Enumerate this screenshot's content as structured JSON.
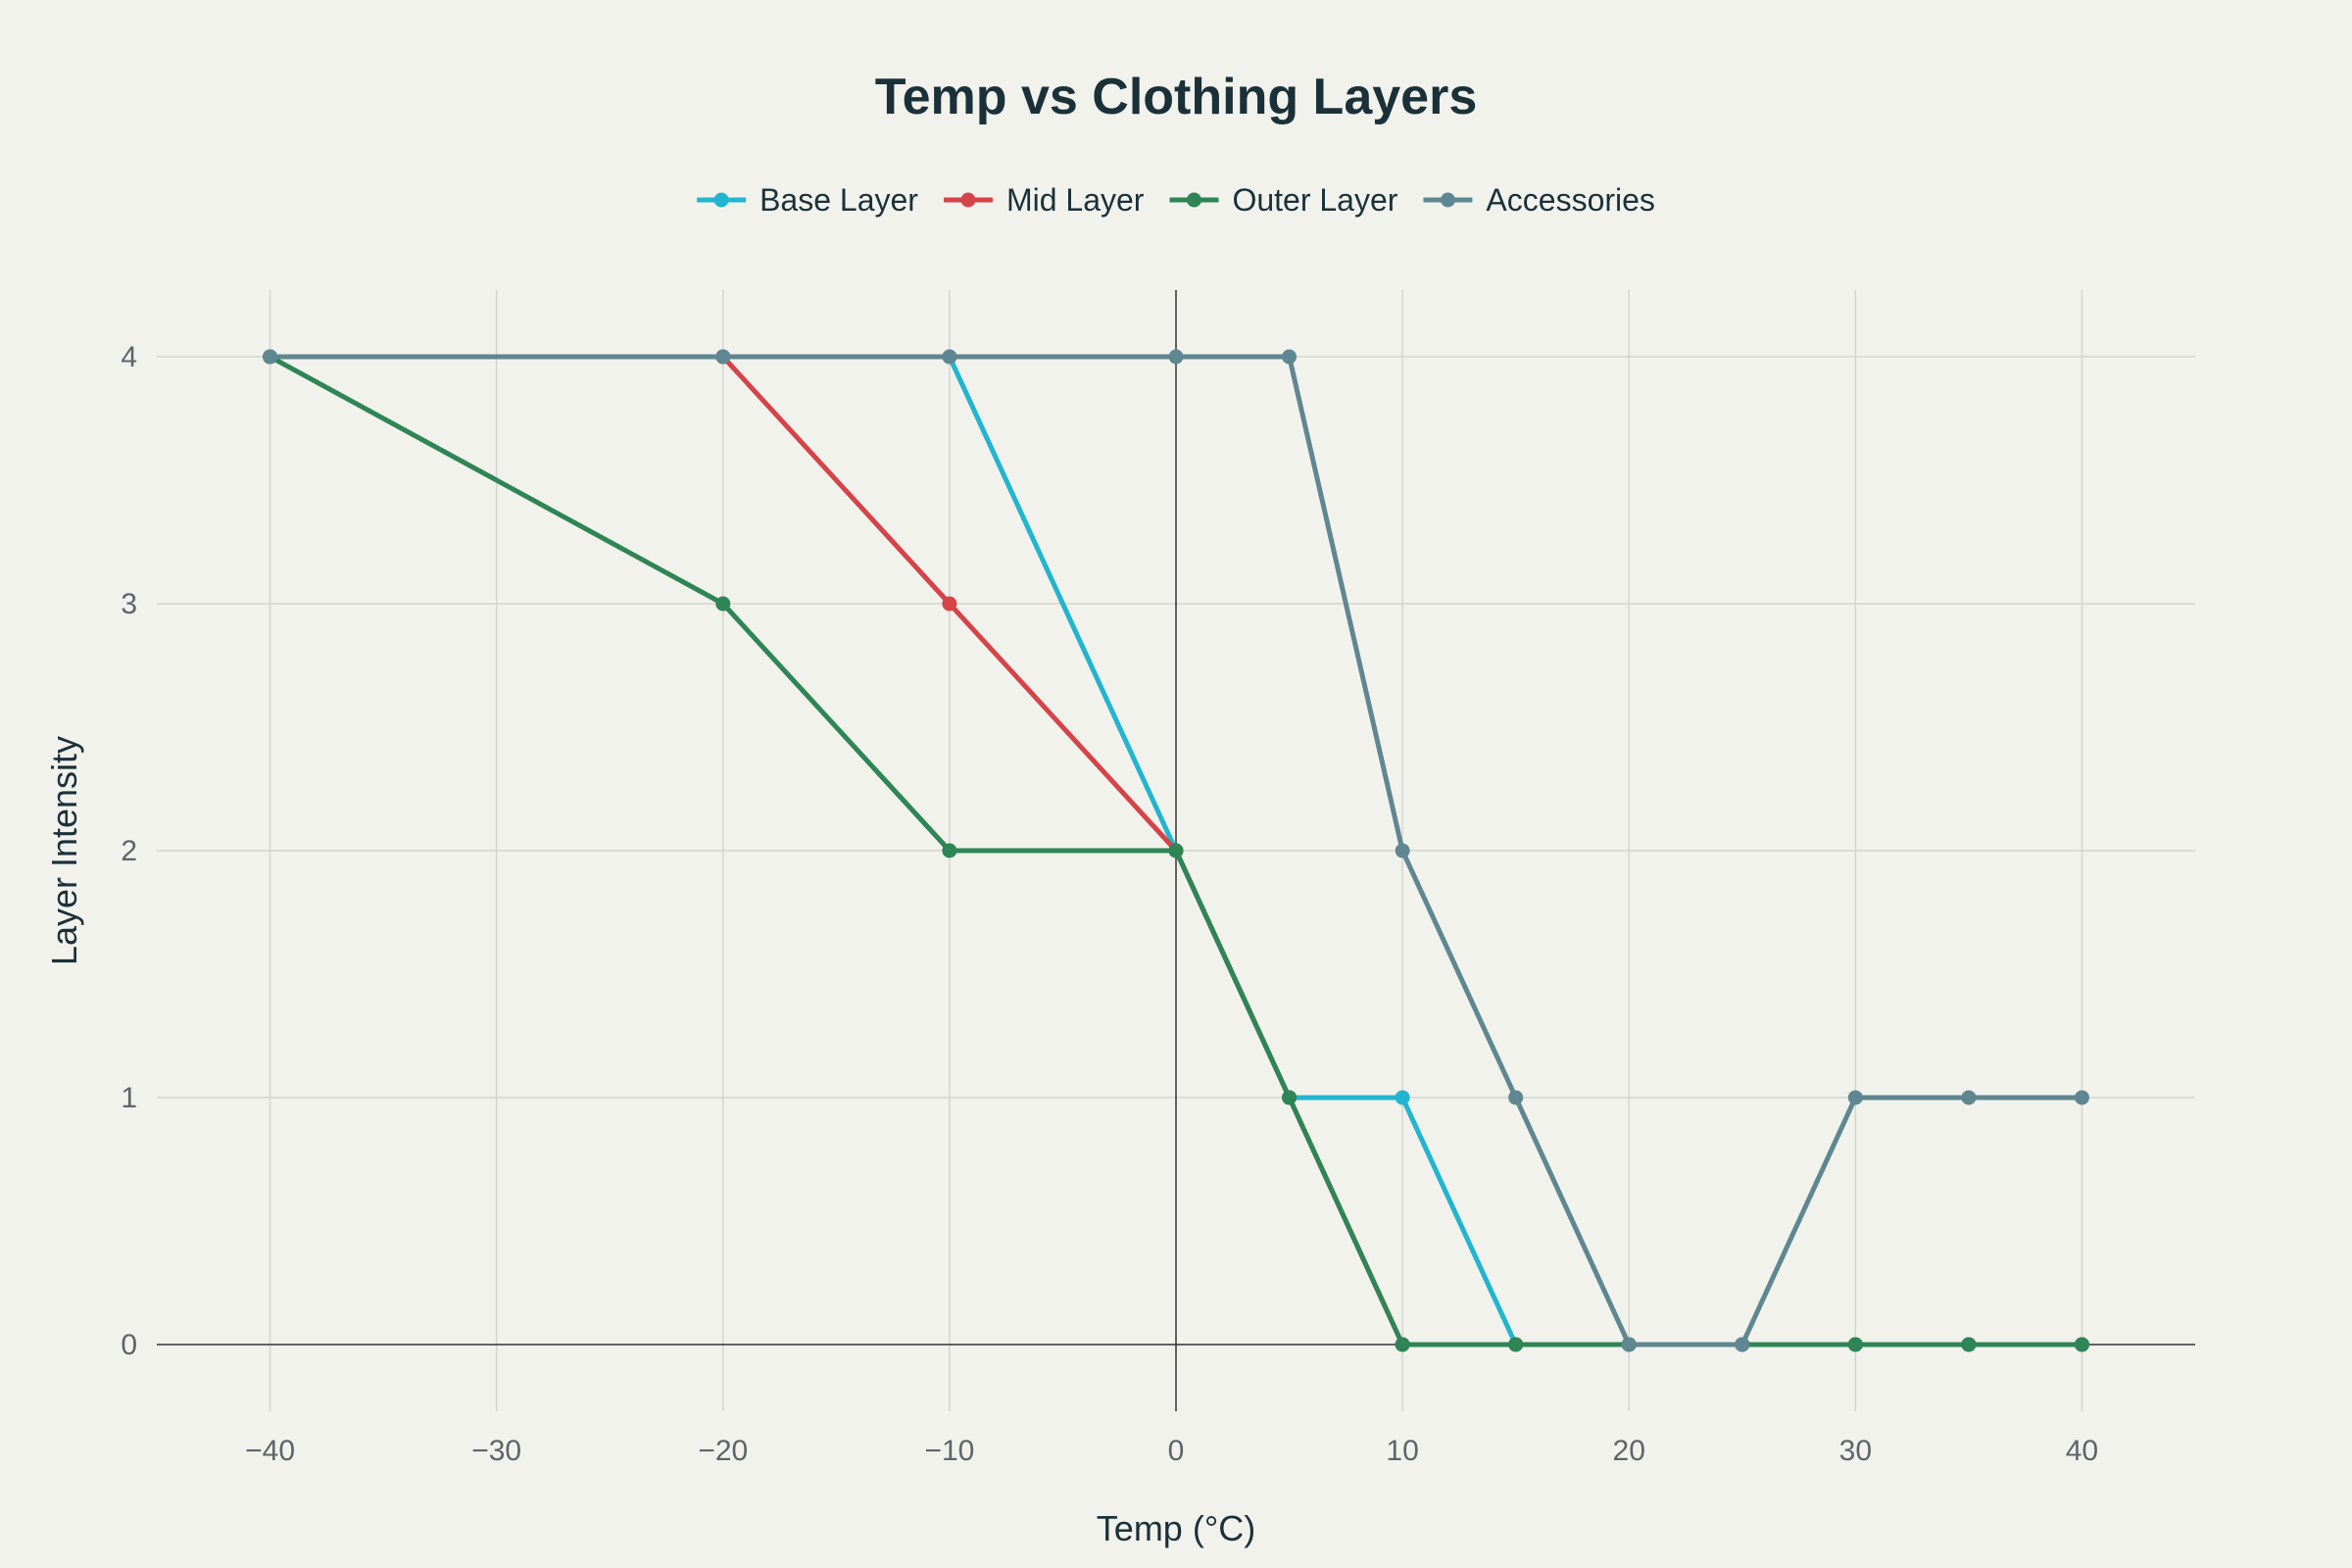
{
  "chart_data": {
    "type": "line",
    "title": "Temp vs Clothing Layers",
    "xlabel": "Temp (°C)",
    "ylabel": "Layer Intensity",
    "xlim": [
      -45,
      45
    ],
    "ylim": [
      -0.27,
      4.27
    ],
    "xticks": [
      -40,
      -30,
      -20,
      -10,
      0,
      10,
      20,
      30,
      40
    ],
    "xtick_labels": [
      "−40",
      "−30",
      "−20",
      "−10",
      "0",
      "10",
      "20",
      "30",
      "40"
    ],
    "yticks": [
      0,
      1,
      2,
      3,
      4
    ],
    "ytick_labels": [
      "0",
      "1",
      "2",
      "3",
      "4"
    ],
    "grid": true,
    "legend_position": "top-center",
    "series": [
      {
        "name": "Base Layer",
        "color": "#22b5cf",
        "x": [
          -40,
          -20,
          -10,
          0,
          5,
          10,
          15,
          20,
          25,
          30,
          35,
          40
        ],
        "y": [
          4,
          4,
          4,
          2,
          1,
          1,
          0,
          0,
          0,
          0,
          0,
          0
        ]
      },
      {
        "name": "Mid Layer",
        "color": "#d44449",
        "x": [
          -40,
          -20,
          -10,
          0,
          5,
          10,
          15,
          20,
          25,
          30,
          35,
          40
        ],
        "y": [
          4,
          4,
          3,
          2,
          1,
          0,
          0,
          0,
          0,
          0,
          0,
          0
        ]
      },
      {
        "name": "Outer Layer",
        "color": "#2e8555",
        "x": [
          -40,
          -20,
          -10,
          0,
          5,
          10,
          15,
          20,
          25,
          30,
          35,
          40
        ],
        "y": [
          4,
          3,
          2,
          2,
          1,
          0,
          0,
          0,
          0,
          0,
          0,
          0
        ]
      },
      {
        "name": "Accessories",
        "color": "#5f8791",
        "x": [
          -40,
          -20,
          -10,
          0,
          5,
          10,
          15,
          20,
          25,
          30,
          35,
          40
        ],
        "y": [
          4,
          4,
          4,
          4,
          4,
          2,
          1,
          0,
          0,
          1,
          1,
          1
        ]
      }
    ]
  }
}
